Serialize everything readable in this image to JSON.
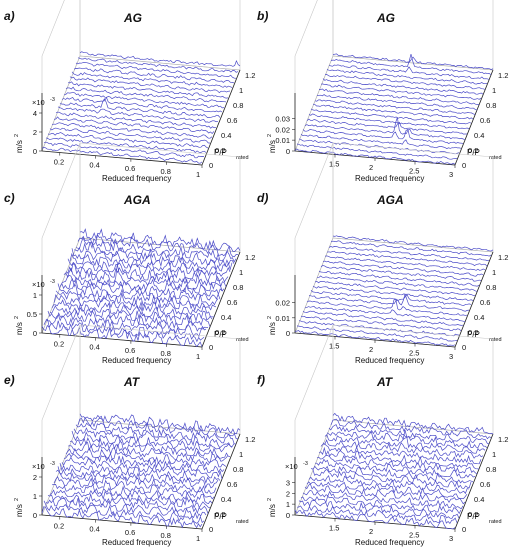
{
  "figure": {
    "y_unit_label": "m/s",
    "y_unit_sup": "2",
    "xlabel": "Reduced frequency",
    "depth_label_main": "P/P",
    "depth_label_sub": "rated",
    "exponent_label": "×10",
    "exponent_sup": "-3"
  },
  "chart_data": [
    {
      "panel": "a)",
      "title": "AG",
      "type": "line",
      "xlabel": "Reduced frequency",
      "ylabel": "m/s2",
      "zlabel": "P/Prated",
      "x_ticks": [
        "0.2",
        "0.4",
        "0.6",
        "0.8",
        "1"
      ],
      "xlim": [
        0.1,
        1.0
      ],
      "y_ticks": [
        "0",
        "0.2",
        "0.4",
        "0.6",
        "0.8",
        "1",
        "1.2"
      ],
      "ylim": [
        0,
        1.25
      ],
      "z_ticks": [
        "0",
        "2",
        "4"
      ],
      "z_exponent": "×10-3",
      "zlim": [
        0,
        0.004
      ],
      "n_traces": 20,
      "noise_level": 0.00012,
      "base_level": 0.0003,
      "peaks": [
        {
          "x": 0.35,
          "y_index": 9,
          "amp": 0.0009
        },
        {
          "x": 0.98,
          "y_index": 19,
          "amp": 0.0006
        }
      ]
    },
    {
      "panel": "b)",
      "title": "AG",
      "type": "line",
      "xlabel": "Reduced frequency",
      "ylabel": "m/s2",
      "zlabel": "P/Prated",
      "x_ticks": [
        "1.5",
        "2",
        "2.5",
        "3"
      ],
      "xlim": [
        1.0,
        3.0
      ],
      "y_ticks": [
        "0",
        "0.2",
        "0.4",
        "0.6",
        "0.8",
        "1",
        "1.2"
      ],
      "ylim": [
        0,
        1.25
      ],
      "z_ticks": [
        "0",
        "0.01",
        "0.02",
        "0.03"
      ],
      "zlim": [
        0,
        0.035
      ],
      "n_traces": 20,
      "noise_level": 0.0008,
      "base_level": 0.001,
      "peaks": [
        {
          "x": 2.0,
          "y_index": 18,
          "amp": 0.012
        },
        {
          "x": 2.15,
          "y_index": 5,
          "amp": 0.015
        },
        {
          "x": 2.3,
          "y_index": 4,
          "amp": 0.01
        }
      ]
    },
    {
      "panel": "c)",
      "title": "AGA",
      "type": "line",
      "xlabel": "Reduced frequency",
      "ylabel": "m/s2",
      "zlabel": "P/Prated",
      "x_ticks": [
        "0.2",
        "0.4",
        "0.6",
        "0.8",
        "1"
      ],
      "xlim": [
        0.1,
        1.0
      ],
      "y_ticks": [
        "0",
        "0.2",
        "0.4",
        "0.6",
        "0.8",
        "1",
        "1.2"
      ],
      "ylim": [
        0,
        1.25
      ],
      "z_ticks": [
        "0",
        "0.5",
        "1"
      ],
      "z_exponent": "×10-3",
      "zlim": [
        0,
        0.001
      ],
      "n_traces": 20,
      "noise_level": 0.00012,
      "base_level": 0.0001,
      "peaks": [
        {
          "x": 0.2,
          "y_index": 16,
          "amp": 0.0004
        },
        {
          "x": 0.4,
          "y_index": 11,
          "amp": 0.0003
        }
      ]
    },
    {
      "panel": "d)",
      "title": "AGA",
      "type": "line",
      "xlabel": "Reduced frequency",
      "ylabel": "m/s2",
      "zlabel": "P/Prated",
      "x_ticks": [
        "1.5",
        "2",
        "2.5",
        "3"
      ],
      "xlim": [
        1.0,
        3.0
      ],
      "y_ticks": [
        "0",
        "0.2",
        "0.4",
        "0.6",
        "0.8",
        "1",
        "1.2"
      ],
      "ylim": [
        0,
        1.25
      ],
      "z_ticks": [
        "0",
        "0.01",
        "0.02"
      ],
      "zlim": [
        0,
        0.025
      ],
      "n_traces": 20,
      "noise_level": 0.0006,
      "base_level": 0.001,
      "peaks": [
        {
          "x": 2.1,
          "y_index": 6,
          "amp": 0.008
        },
        {
          "x": 2.2,
          "y_index": 7,
          "amp": 0.007
        }
      ]
    },
    {
      "panel": "e)",
      "title": "AT",
      "type": "line",
      "xlabel": "Reduced frequency",
      "ylabel": "m/s2",
      "zlabel": "P/Prated",
      "x_ticks": [
        "0.2",
        "0.4",
        "0.6",
        "0.8",
        "1"
      ],
      "xlim": [
        0.1,
        1.0
      ],
      "y_ticks": [
        "0",
        "0.2",
        "0.4",
        "0.6",
        "0.8",
        "1",
        "1.2"
      ],
      "ylim": [
        0,
        1.25
      ],
      "z_ticks": [
        "0",
        "1",
        "2"
      ],
      "z_exponent": "×10-3",
      "zlim": [
        0,
        0.002
      ],
      "n_traces": 20,
      "noise_level": 0.0002,
      "base_level": 0.0002,
      "peaks": [
        {
          "x": 0.5,
          "y_index": 17,
          "amp": 0.0005
        }
      ]
    },
    {
      "panel": "f)",
      "title": "AT",
      "type": "line",
      "xlabel": "Reduced frequency",
      "ylabel": "m/s2",
      "zlabel": "P/Prated",
      "x_ticks": [
        "1.5",
        "2",
        "2.5",
        "3"
      ],
      "xlim": [
        1.0,
        3.0
      ],
      "y_ticks": [
        "0",
        "0.2",
        "0.4",
        "0.6",
        "0.8",
        "1",
        "1.2"
      ],
      "ylim": [
        0,
        1.25
      ],
      "z_ticks": [
        "0",
        "1",
        "2",
        "3"
      ],
      "z_exponent": "×10-3",
      "zlim": [
        0,
        0.0035
      ],
      "n_traces": 20,
      "noise_level": 0.0003,
      "base_level": 0.0002,
      "peaks": [
        {
          "x": 2.0,
          "y_index": 15,
          "amp": 0.0012
        },
        {
          "x": 2.3,
          "y_index": 8,
          "amp": 0.0009
        }
      ]
    }
  ]
}
